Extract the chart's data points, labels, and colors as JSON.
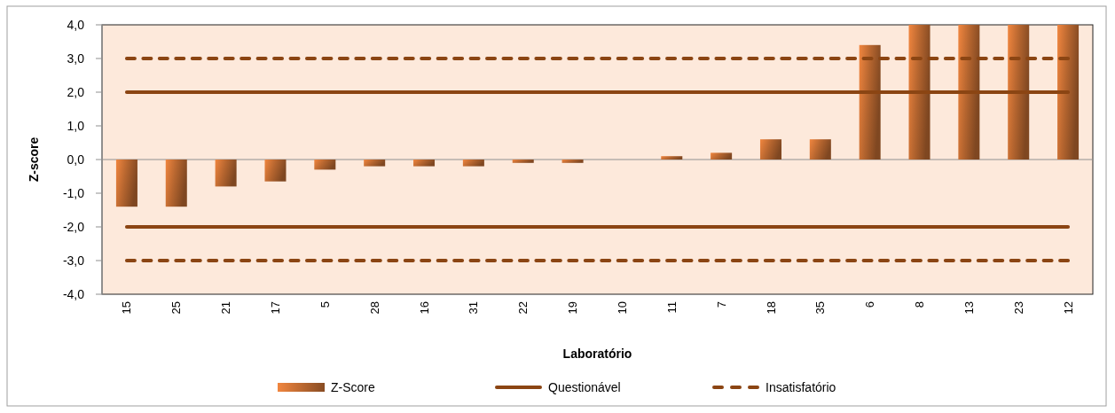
{
  "chart_data": {
    "type": "bar",
    "xlabel": "Laboratório",
    "ylabel": "Z-score",
    "categories": [
      "15",
      "25",
      "21",
      "17",
      "5",
      "28",
      "16",
      "31",
      "22",
      "19",
      "10",
      "11",
      "7",
      "18",
      "35",
      "6",
      "8",
      "13",
      "23",
      "12"
    ],
    "series": [
      {
        "name": "Z-Score",
        "color": "#b5652f",
        "values": [
          -1.4,
          -1.4,
          -0.8,
          -0.65,
          -0.3,
          -0.2,
          -0.2,
          -0.2,
          -0.1,
          -0.1,
          0,
          0.1,
          0.2,
          0.6,
          0.6,
          3.4,
          4,
          4,
          4,
          4
        ]
      },
      {
        "name": "Questionável",
        "type": "line",
        "color": "#8b4513",
        "line_style": "solid",
        "values": [
          2,
          2,
          2,
          2,
          2,
          2,
          2,
          2,
          2,
          2,
          2,
          2,
          2,
          2,
          2,
          2,
          2,
          2,
          2,
          2
        ]
      },
      {
        "type": "line",
        "color": "#8b4513",
        "line_style": "solid",
        "values": [
          -2,
          -2,
          -2,
          -2,
          -2,
          -2,
          -2,
          -2,
          -2,
          -2,
          -2,
          -2,
          -2,
          -2,
          -2,
          -2,
          -2,
          -2,
          -2,
          -2
        ]
      },
      {
        "name": "Insatisfatório",
        "type": "line",
        "color": "#8b4513",
        "line_style": "dashed",
        "values": [
          3,
          3,
          3,
          3,
          3,
          3,
          3,
          3,
          3,
          3,
          3,
          3,
          3,
          3,
          3,
          3,
          3,
          3,
          3,
          3
        ]
      },
      {
        "type": "line",
        "color": "#8b4513",
        "line_style": "dashed",
        "values": [
          -3,
          -3,
          -3,
          -3,
          -3,
          -3,
          -3,
          -3,
          -3,
          -3,
          -3,
          -3,
          -3,
          -3,
          -3,
          -3,
          -3,
          -3,
          -3,
          -3
        ]
      }
    ],
    "ylim": [
      -4,
      4
    ],
    "yticks": [
      {
        "value": -4,
        "label": "-4,0"
      },
      {
        "value": -3,
        "label": "-3,0"
      },
      {
        "value": -2,
        "label": "-2,0"
      },
      {
        "value": -1,
        "label": "-1,0"
      },
      {
        "value": 0,
        "label": "0,0"
      },
      {
        "value": 1,
        "label": "1,0"
      },
      {
        "value": 2,
        "label": "2,0"
      },
      {
        "value": 3,
        "label": "3,0"
      },
      {
        "value": 4,
        "label": "4,0"
      }
    ],
    "legend": "bottom"
  }
}
